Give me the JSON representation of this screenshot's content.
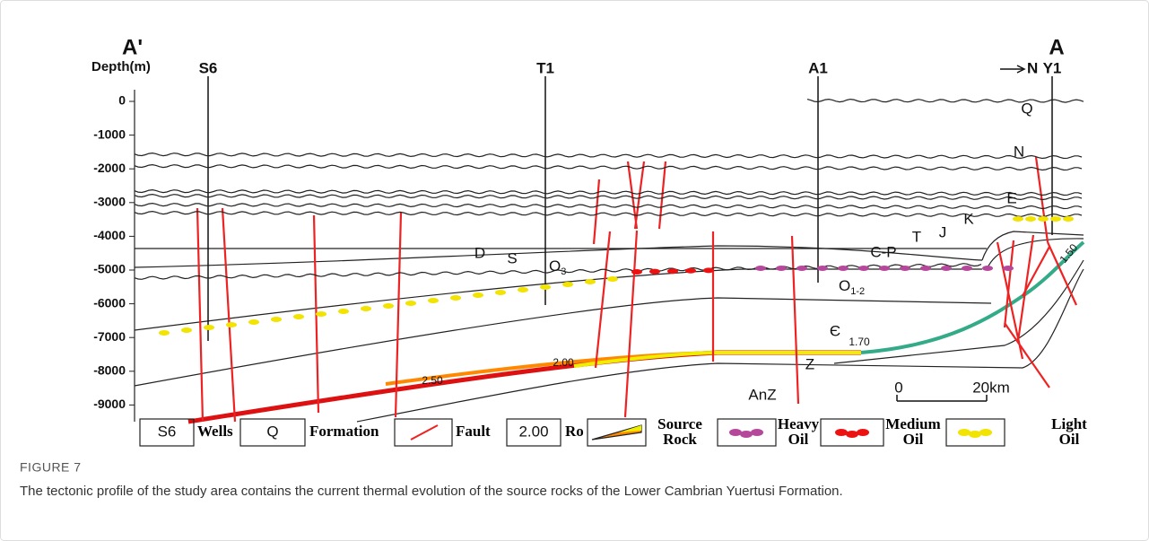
{
  "figure": {
    "section_left": "A'",
    "section_right": "A",
    "depth_label": "Depth(m)",
    "north": "N",
    "depth_ticks": [
      "0",
      "-1000",
      "-2000",
      "-3000",
      "-4000",
      "-5000",
      "-6000",
      "-7000",
      "-8000",
      "-9000"
    ],
    "wells": [
      "S6",
      "T1",
      "A1",
      "Y1"
    ],
    "formations": [
      "Q",
      "N",
      "E",
      "K",
      "J",
      "T",
      "C-P",
      "D",
      "S",
      "Є",
      "Z",
      "AnZ"
    ],
    "subscripted_formations": [
      {
        "main": "O",
        "sub": "3"
      },
      {
        "main": "O",
        "sub": "1-2"
      }
    ],
    "ro_labels": [
      "2.50",
      "2.00",
      "1.70",
      "1.50"
    ],
    "scale": [
      "0",
      "20km"
    ],
    "legend": {
      "well_box": "S6",
      "wells": "Wells",
      "formation_box": "Q",
      "formation": "Formation",
      "fault": "Fault",
      "ro_box": "2.00",
      "ro": "Ro",
      "source_rock": [
        "Source",
        "Rock"
      ],
      "heavy_oil": [
        "Heavy",
        "Oil"
      ],
      "medium_oil": [
        "Medium",
        "Oil"
      ],
      "light_oil": [
        "Light",
        "Oil"
      ]
    }
  },
  "caption": {
    "label": "FIGURE 7",
    "text": "The tectonic profile of the study area contains the current thermal evolution of the source rocks of the Lower Cambrian Yuertusi Formation."
  }
}
